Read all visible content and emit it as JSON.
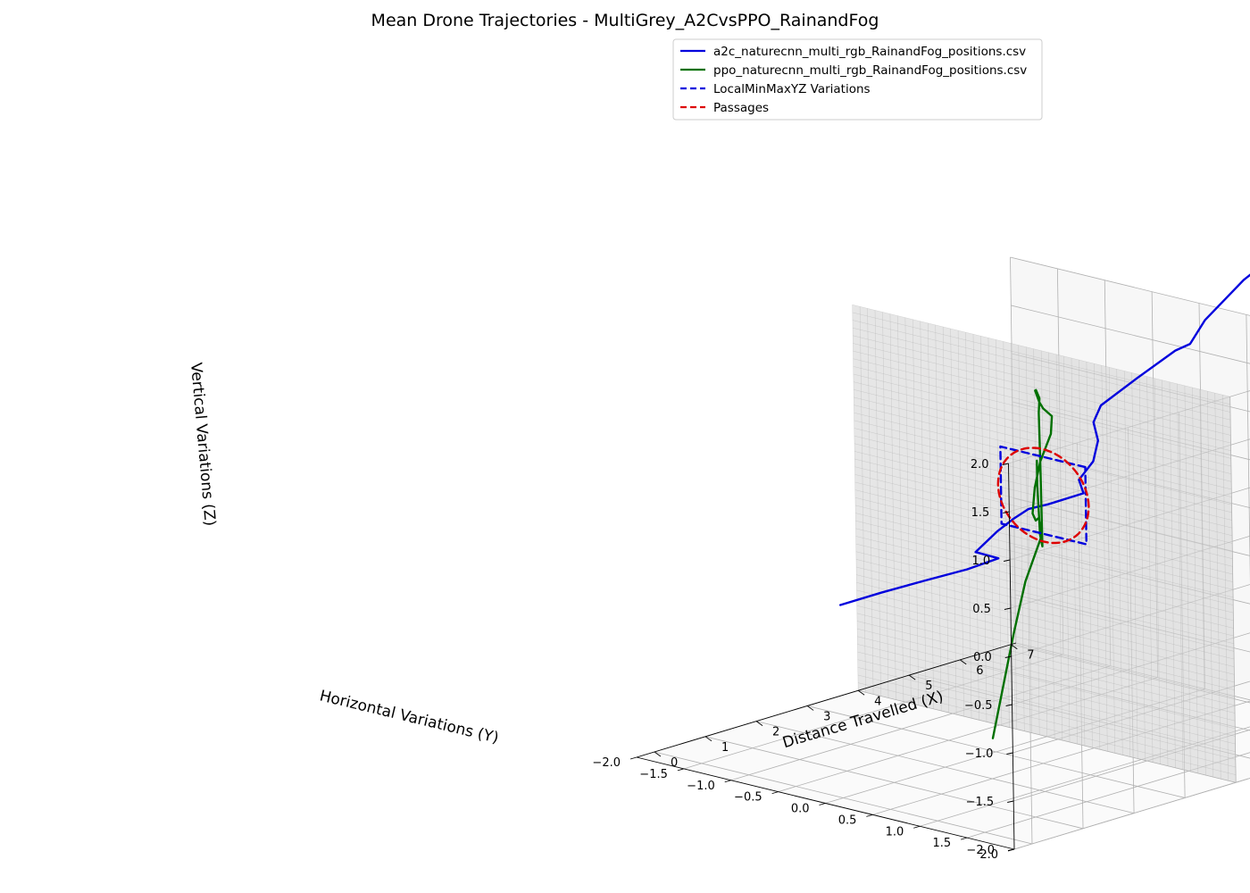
{
  "chart_data": {
    "type": "line3d",
    "title": "Mean Drone Trajectories - MultiGrey_A2CvsPPO_RainandFog",
    "xlabel": "Distance Travelled (X)",
    "ylabel": "Horizontal Variations (Y)",
    "zlabel": "Vertical Variations (Z)",
    "xlim": [
      -0.35,
      7.1
    ],
    "ylim": [
      -2.0,
      2.0
    ],
    "zlim": [
      -2.0,
      2.0
    ],
    "x_ticks": [
      "0",
      "1",
      "2",
      "3",
      "4",
      "5",
      "6",
      "7"
    ],
    "y_ticks": [
      "2.0",
      "1.5",
      "1.0",
      "0.5",
      "0.0",
      "−0.5",
      "−1.0",
      "−1.5",
      "−2.0"
    ],
    "z_ticks": [
      "2.0",
      "1.5",
      "1.0",
      "0.5",
      "0.0",
      "−0.5",
      "−1.0",
      "−1.5",
      "−2.0"
    ],
    "grid": true,
    "legend_position": "top-right",
    "obstacle_wall": {
      "x": 4.0,
      "y_range": [
        -2.0,
        2.0
      ],
      "z_range": [
        -2.0,
        2.0
      ],
      "color": "#d6d6d6"
    },
    "series": [
      {
        "name": "a2c_naturecnn_multi_rgb_RainandFog_positions.csv",
        "color": "#0000dd",
        "style": "solid",
        "points": [
          [
            0.0,
            0.0,
            0.0
          ],
          [
            0.8,
            0.0,
            0.0
          ],
          [
            1.6,
            0.02,
            0.0
          ],
          [
            2.4,
            0.05,
            0.0
          ],
          [
            2.55,
            0.3,
            0.15
          ],
          [
            2.75,
            -0.05,
            0.1
          ],
          [
            3.0,
            0.05,
            0.3
          ],
          [
            3.4,
            0.0,
            0.35
          ],
          [
            3.8,
            -0.05,
            0.38
          ],
          [
            4.0,
            0.05,
            0.42
          ],
          [
            4.6,
            0.1,
            0.45
          ],
          [
            4.7,
            0.0,
            0.55
          ],
          [
            4.8,
            0.1,
            0.75
          ],
          [
            4.9,
            0.1,
            0.95
          ],
          [
            5.0,
            0.0,
            1.1
          ],
          [
            5.15,
            0.0,
            1.25
          ],
          [
            5.4,
            0.25,
            1.55
          ],
          [
            5.7,
            0.5,
            1.85
          ],
          [
            5.9,
            0.55,
            1.9
          ],
          [
            6.2,
            0.55,
            2.1
          ],
          [
            6.4,
            0.65,
            2.3
          ],
          [
            6.6,
            0.75,
            2.5
          ],
          [
            6.8,
            0.8,
            2.6
          ]
        ]
      },
      {
        "name": "ppo_naturecnn_multi_rgb_RainandFog_positions.csv",
        "color": "#007000",
        "style": "solid",
        "points": [
          [
            0.0,
            1.6,
            -1.0
          ],
          [
            0.8,
            1.4,
            -0.1
          ],
          [
            1.6,
            1.1,
            0.25
          ],
          [
            2.4,
            0.85,
            0.55
          ],
          [
            2.8,
            0.6,
            0.6
          ],
          [
            3.2,
            0.35,
            0.45
          ],
          [
            3.6,
            0.1,
            0.4
          ],
          [
            3.9,
            -0.05,
            0.45
          ],
          [
            4.2,
            -0.2,
            0.5
          ],
          [
            4.5,
            -0.3,
            0.7
          ],
          [
            4.9,
            -0.4,
            0.9
          ],
          [
            5.2,
            -0.55,
            1.0
          ],
          [
            5.4,
            -0.75,
            1.0
          ],
          [
            5.6,
            -0.9,
            1.0
          ],
          [
            5.8,
            -1.05,
            1.05
          ],
          [
            6.0,
            -1.15,
            1.0
          ],
          [
            6.25,
            -1.25,
            0.85
          ],
          [
            6.6,
            -1.45,
            0.6
          ],
          [
            6.8,
            -1.55,
            0.0
          ],
          [
            6.9,
            -1.6,
            -0.5
          ],
          [
            7.0,
            -1.65,
            -0.9
          ],
          [
            7.05,
            -1.7,
            -0.8
          ],
          [
            7.1,
            -1.75,
            -0.3
          ],
          [
            7.1,
            -1.75,
            -0.05
          ]
        ]
      },
      {
        "name": "LocalMinMaxYZ Variations",
        "color": "#0000dd",
        "style": "dashed",
        "points": [
          [
            4.0,
            0.45,
            0.9
          ],
          [
            4.0,
            -0.45,
            0.9
          ],
          [
            4.0,
            -0.45,
            0.1
          ],
          [
            4.0,
            0.45,
            0.1
          ],
          [
            4.0,
            0.45,
            0.9
          ]
        ]
      },
      {
        "name": "Passages",
        "color": "#dd0000",
        "style": "dashed",
        "circle": {
          "x": 4.0,
          "y": 0.0,
          "z": 0.5,
          "r": 0.48
        }
      }
    ]
  }
}
